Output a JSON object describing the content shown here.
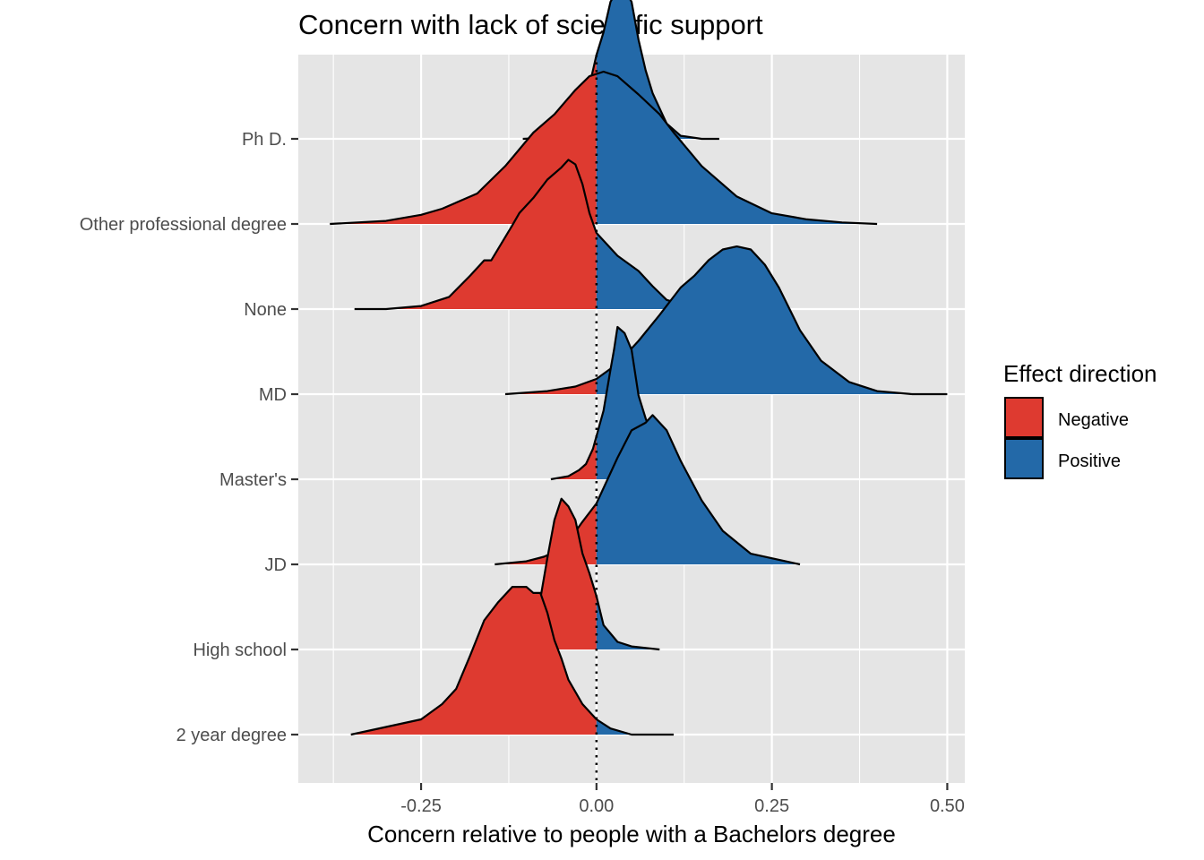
{
  "chart_data": {
    "type": "ridgeline",
    "title": "Concern with lack of scientific support",
    "xlabel": "Concern relative to people with a Bachelors degree",
    "ylabel": "",
    "xlim": [
      -0.425,
      0.525
    ],
    "x_ticks": [
      -0.25,
      0.0,
      0.25,
      0.5
    ],
    "x_tick_labels": [
      "-0.25",
      "0.00",
      "0.25",
      "0.50"
    ],
    "categories": [
      "2 year degree",
      "High school",
      "JD",
      "Master's",
      "MD",
      "None",
      "Other professional degree",
      "Ph D."
    ],
    "reference_line": 0,
    "grid": true,
    "legend": {
      "title": "Effect direction",
      "position": "right",
      "items": [
        {
          "label": "Negative",
          "color": "#DE3A30"
        },
        {
          "label": "Positive",
          "color": "#2369A8"
        }
      ]
    },
    "colors": {
      "negative": "#DE3A30",
      "positive": "#2369A8",
      "panel": "#E5E5E5",
      "grid": "#FFFFFF"
    },
    "series": [
      {
        "name": "2 year degree",
        "x": [
          -0.35,
          -0.3,
          -0.25,
          -0.22,
          -0.2,
          -0.18,
          -0.16,
          -0.14,
          -0.12,
          -0.1,
          -0.09,
          -0.08,
          -0.07,
          -0.06,
          -0.05,
          -0.04,
          -0.02,
          0.0,
          0.02,
          0.05,
          0.11
        ],
        "density": [
          0.0,
          0.05,
          0.1,
          0.2,
          0.3,
          0.52,
          0.75,
          0.87,
          0.97,
          0.97,
          0.93,
          0.93,
          0.8,
          0.62,
          0.5,
          0.36,
          0.2,
          0.1,
          0.04,
          0.0,
          0.0
        ]
      },
      {
        "name": "High school",
        "x": [
          -0.155,
          -0.13,
          -0.11,
          -0.1,
          -0.085,
          -0.07,
          -0.06,
          -0.05,
          -0.04,
          -0.03,
          -0.02,
          -0.01,
          0.0,
          0.01,
          0.03,
          0.05,
          0.09
        ],
        "density": [
          0.0,
          0.04,
          0.07,
          0.05,
          0.2,
          0.6,
          0.85,
          0.99,
          0.94,
          0.85,
          0.63,
          0.5,
          0.35,
          0.16,
          0.05,
          0.02,
          0.0
        ]
      },
      {
        "name": "JD",
        "x": [
          -0.145,
          -0.1,
          -0.075,
          -0.05,
          -0.04,
          -0.02,
          0.0,
          0.03,
          0.05,
          0.07,
          0.08,
          0.1,
          0.12,
          0.15,
          0.18,
          0.22,
          0.29
        ],
        "density": [
          0.0,
          0.02,
          0.05,
          0.1,
          0.15,
          0.28,
          0.4,
          0.7,
          0.88,
          0.93,
          0.98,
          0.88,
          0.68,
          0.42,
          0.22,
          0.07,
          0.0
        ]
      },
      {
        "name": "Master's",
        "x": [
          -0.065,
          -0.04,
          -0.025,
          -0.015,
          -0.005,
          0.01,
          0.02,
          0.025,
          0.03,
          0.04,
          0.05,
          0.06,
          0.07,
          0.08,
          0.09,
          0.095,
          0.11,
          0.125
        ],
        "density": [
          0.0,
          0.02,
          0.06,
          0.1,
          0.2,
          0.45,
          0.72,
          0.85,
          1.0,
          0.96,
          0.85,
          0.55,
          0.4,
          0.28,
          0.15,
          0.05,
          0.02,
          0.0
        ]
      },
      {
        "name": "MD",
        "x": [
          -0.13,
          -0.07,
          -0.03,
          0.0,
          0.03,
          0.06,
          0.09,
          0.12,
          0.14,
          0.16,
          0.18,
          0.2,
          0.22,
          0.24,
          0.26,
          0.29,
          0.32,
          0.36,
          0.4,
          0.45,
          0.5
        ],
        "density": [
          0.0,
          0.02,
          0.05,
          0.1,
          0.2,
          0.35,
          0.52,
          0.7,
          0.78,
          0.88,
          0.95,
          0.97,
          0.95,
          0.85,
          0.7,
          0.42,
          0.22,
          0.08,
          0.02,
          0.0,
          0.0
        ]
      },
      {
        "name": "None",
        "x": [
          -0.345,
          -0.3,
          -0.25,
          -0.21,
          -0.18,
          -0.16,
          -0.15,
          -0.12,
          -0.11,
          -0.09,
          -0.07,
          -0.05,
          -0.04,
          -0.03,
          -0.02,
          -0.01,
          0.0,
          0.03,
          0.06,
          0.08,
          0.1,
          0.13,
          0.18,
          0.22
        ],
        "density": [
          0.0,
          0.0,
          0.02,
          0.08,
          0.22,
          0.32,
          0.32,
          0.55,
          0.63,
          0.73,
          0.85,
          0.93,
          0.98,
          0.95,
          0.82,
          0.63,
          0.5,
          0.35,
          0.25,
          0.15,
          0.06,
          0.02,
          0.0,
          0.0
        ]
      },
      {
        "name": "Other professional degree",
        "x": [
          -0.38,
          -0.3,
          -0.25,
          -0.22,
          -0.17,
          -0.13,
          -0.09,
          -0.06,
          -0.03,
          -0.01,
          0.01,
          0.03,
          0.06,
          0.09,
          0.11,
          0.15,
          0.2,
          0.25,
          0.3,
          0.35,
          0.4
        ],
        "density": [
          0.0,
          0.02,
          0.06,
          0.1,
          0.2,
          0.38,
          0.6,
          0.72,
          0.88,
          0.97,
          1.0,
          0.97,
          0.85,
          0.72,
          0.6,
          0.38,
          0.18,
          0.07,
          0.03,
          0.01,
          0.0
        ]
      },
      {
        "name": "Ph D.",
        "x": [
          -0.105,
          -0.06,
          -0.045,
          -0.03,
          -0.02,
          -0.01,
          0.0,
          0.01,
          0.02,
          0.03,
          0.04,
          0.05,
          0.06,
          0.07,
          0.08,
          0.09,
          0.1,
          0.12,
          0.15,
          0.175
        ],
        "density": [
          0.0,
          0.01,
          0.04,
          0.1,
          0.22,
          0.35,
          0.55,
          0.7,
          0.9,
          0.98,
          0.98,
          0.9,
          0.65,
          0.45,
          0.3,
          0.2,
          0.1,
          0.02,
          0.0,
          0.0
        ]
      }
    ]
  }
}
